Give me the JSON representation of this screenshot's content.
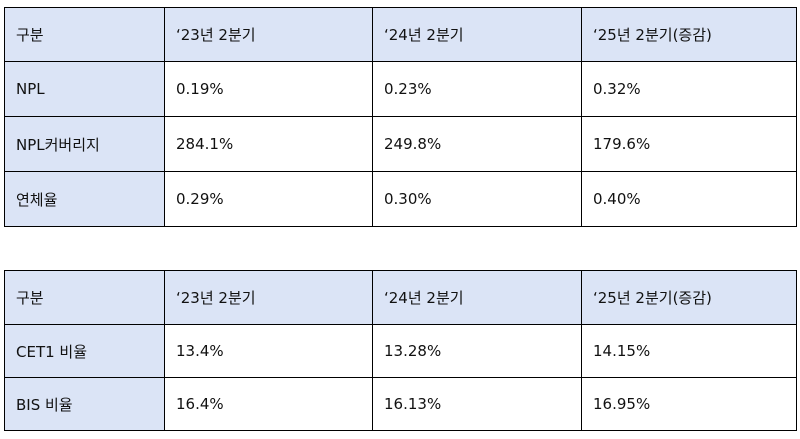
{
  "tables": [
    {
      "headers": [
        "구분",
        "‘23년 2분기",
        "‘24년 2분기",
        "‘25년 2분기(증감)"
      ],
      "rows": [
        {
          "label": "NPL",
          "values": [
            "0.19%",
            "0.23%",
            "0.32%"
          ]
        },
        {
          "label": "NPL커버리지",
          "values": [
            "284.1%",
            "249.8%",
            "179.6%"
          ]
        },
        {
          "label": "연체율",
          "values": [
            "0.29%",
            "0.30%",
            "0.40%"
          ]
        }
      ]
    },
    {
      "headers": [
        "구분",
        "‘23년 2분기",
        "‘24년 2분기",
        "‘25년 2분기(증감)"
      ],
      "rows": [
        {
          "label": "CET1 비율",
          "values": [
            "13.4%",
            "13.28%",
            "14.15%"
          ]
        },
        {
          "label": "BIS 비율",
          "values": [
            "16.4%",
            "16.13%",
            "16.95%"
          ]
        }
      ]
    }
  ],
  "colors": {
    "header_background": "#dbe4f6",
    "border": "#000000",
    "text": "#111111"
  }
}
